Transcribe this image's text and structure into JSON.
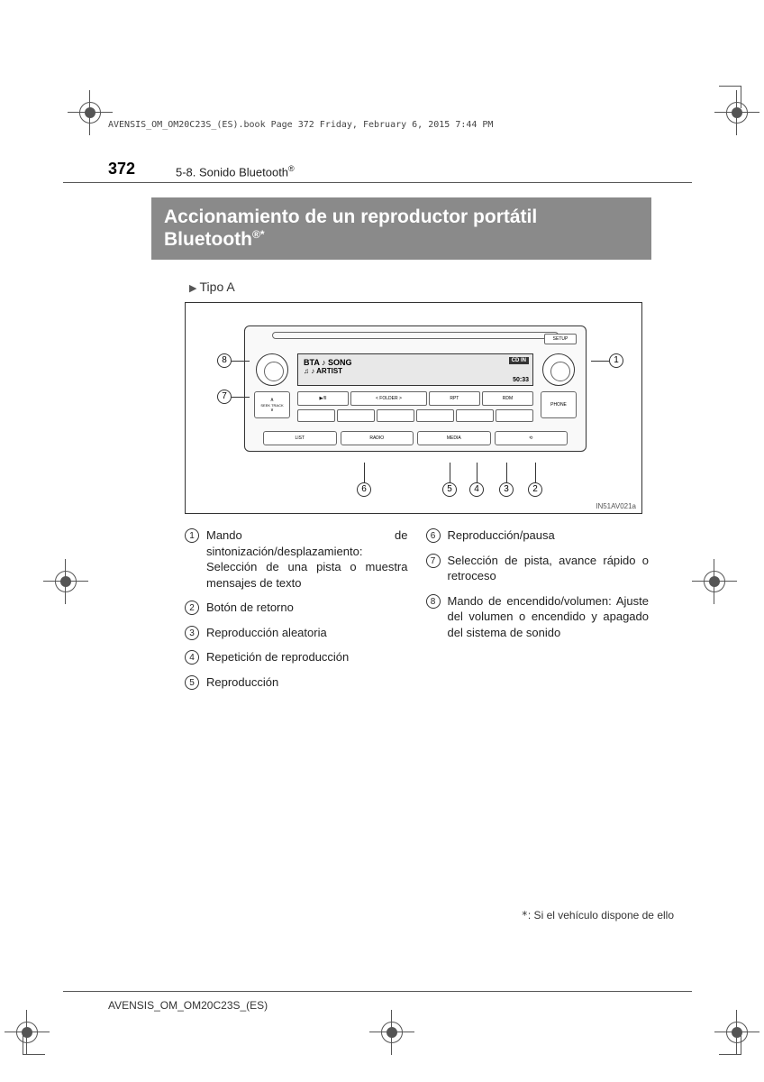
{
  "header_line": "AVENSIS_OM_OM20C23S_(ES).book  Page 372  Friday, February 6, 2015  7:44 PM",
  "page_number": "372",
  "section_label": "5-8. Sonido Bluetooth",
  "title_line1": "Accionamiento de un reproductor portátil",
  "title_line2": "Bluetooth",
  "title_suffix": "®*",
  "subtype": "Tipo A",
  "radio": {
    "setup": "SETUP",
    "text_btn": "TEXT",
    "display_mode": "BTA",
    "display_song": "♪ SONG",
    "display_artist": "♫ ♪ ARTIST",
    "display_cdin": "CD IN",
    "display_bt": "Yıl BT",
    "display_time": "50:33",
    "btn_play": "▶/II",
    "btn_folder": "< FOLDER >",
    "btn_rpt": "RPT",
    "btn_rdm": "RDM",
    "seek_up": "∧",
    "seek_label": "SEEK TRACK",
    "seek_down": "∨",
    "phone": "PHONE",
    "bot_list": "LIST",
    "bot_radio": "RADIO",
    "bot_media": "MEDIA",
    "bot_back": "⟲"
  },
  "callouts": {
    "c1": "1",
    "c2": "2",
    "c3": "3",
    "c4": "4",
    "c5": "5",
    "c6": "6",
    "c7": "7",
    "c8": "8"
  },
  "img_code": "IN51AV021a",
  "legend": {
    "i1": "Mando de sintonización/desplazamiento: Selección de una pista o muestra mensajes de texto",
    "i2": "Botón de retorno",
    "i3": "Reproducción aleatoria",
    "i4": "Repetición de reproducción",
    "i5": "Reproducción",
    "i6": "Reproducción/pausa",
    "i7": "Selección de pista, avance rápido o retroceso",
    "i8": "Mando de encendido/volumen: Ajuste del volumen o encendido y apagado del sistema de sonido"
  },
  "footnote_ast": "*",
  "footnote_text": ": Si el vehículo dispone de ello",
  "footer_code": "AVENSIS_OM_OM20C23S_(ES)"
}
